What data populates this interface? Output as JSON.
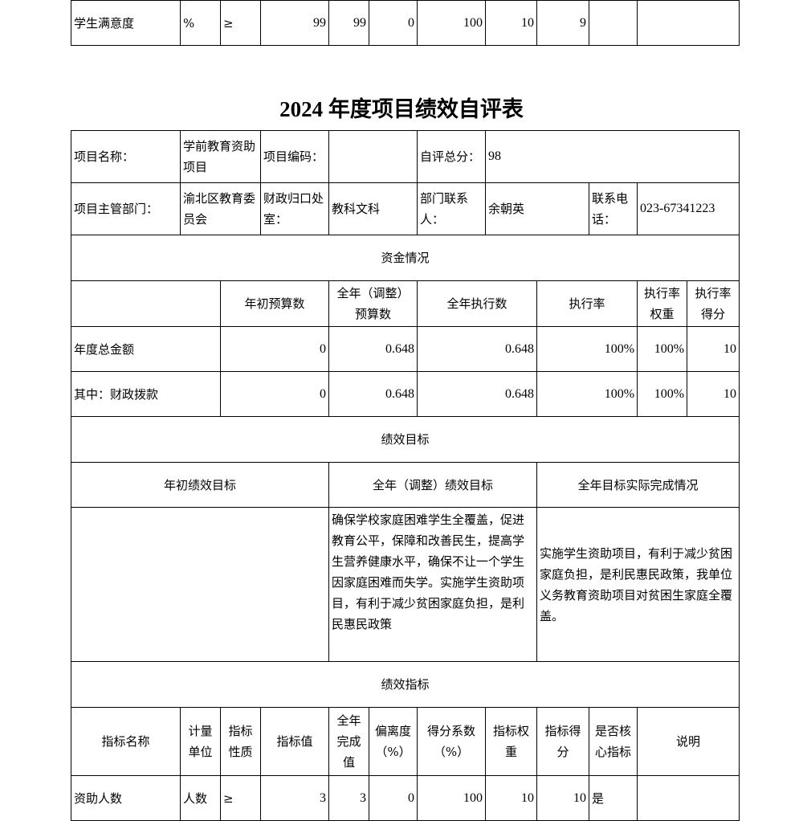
{
  "prev_row": [
    "学生满意度",
    "%",
    "≥",
    "99",
    "99",
    "0",
    "100",
    "10",
    "9",
    "",
    ""
  ],
  "title": "2024 年度项目绩效自评表",
  "info": {
    "name_label": "项目名称：",
    "name": "学前教育资助项目",
    "code_label": "项目编码：",
    "code": "",
    "score_label": "自评总分：",
    "score": "98",
    "dept_label": "项目主管部门：",
    "dept": "渝北区教育委员会",
    "office_label": "财政归口处室：",
    "office": "教科文科",
    "contact_label": "部门联系人：",
    "contact": "余朝英",
    "phone_label": "联系电话：",
    "phone": "023-67341223"
  },
  "funds": {
    "section": "资金情况",
    "headers": [
      "",
      "年初预算数",
      "全年（调整）预算数",
      "全年执行数",
      "执行率",
      "执行率权重",
      "执行率得分"
    ],
    "rows": [
      [
        "年度总金额",
        "0",
        "0.648",
        "0.648",
        "100%",
        "100%",
        "10"
      ],
      [
        "其中：财政拨款",
        "0",
        "0.648",
        "0.648",
        "100%",
        "100%",
        "10"
      ]
    ]
  },
  "goals": {
    "section": "绩效目标",
    "headers": [
      "年初绩效目标",
      "全年（调整）绩效目标",
      "全年目标实际完成情况"
    ],
    "initial": "",
    "adjusted": "确保学校家庭困难学生全覆盖，促进教育公平，保障和改善民生，提高学生营养健康水平，确保不让一个学生因家庭困难而失学。实施学生资助项目，有利于减少贫困家庭负担，是利民惠民政策",
    "actual": "实施学生资助项目，有利于减少贫困家庭负担，是利民惠民政策，我单位义务教育资助项目对贫困生家庭全覆盖。"
  },
  "indicators": {
    "section": "绩效指标",
    "headers": [
      "指标名称",
      "计量单位",
      "指标性质",
      "指标值",
      "全年完成值",
      "偏离度（%）",
      "得分系数（%）",
      "指标权重",
      "指标得分",
      "是否核心指标",
      "说明"
    ],
    "rows": [
      [
        "资助人数",
        "人数",
        "≥",
        "3",
        "3",
        "0",
        "100",
        "10",
        "10",
        "是",
        ""
      ]
    ]
  }
}
